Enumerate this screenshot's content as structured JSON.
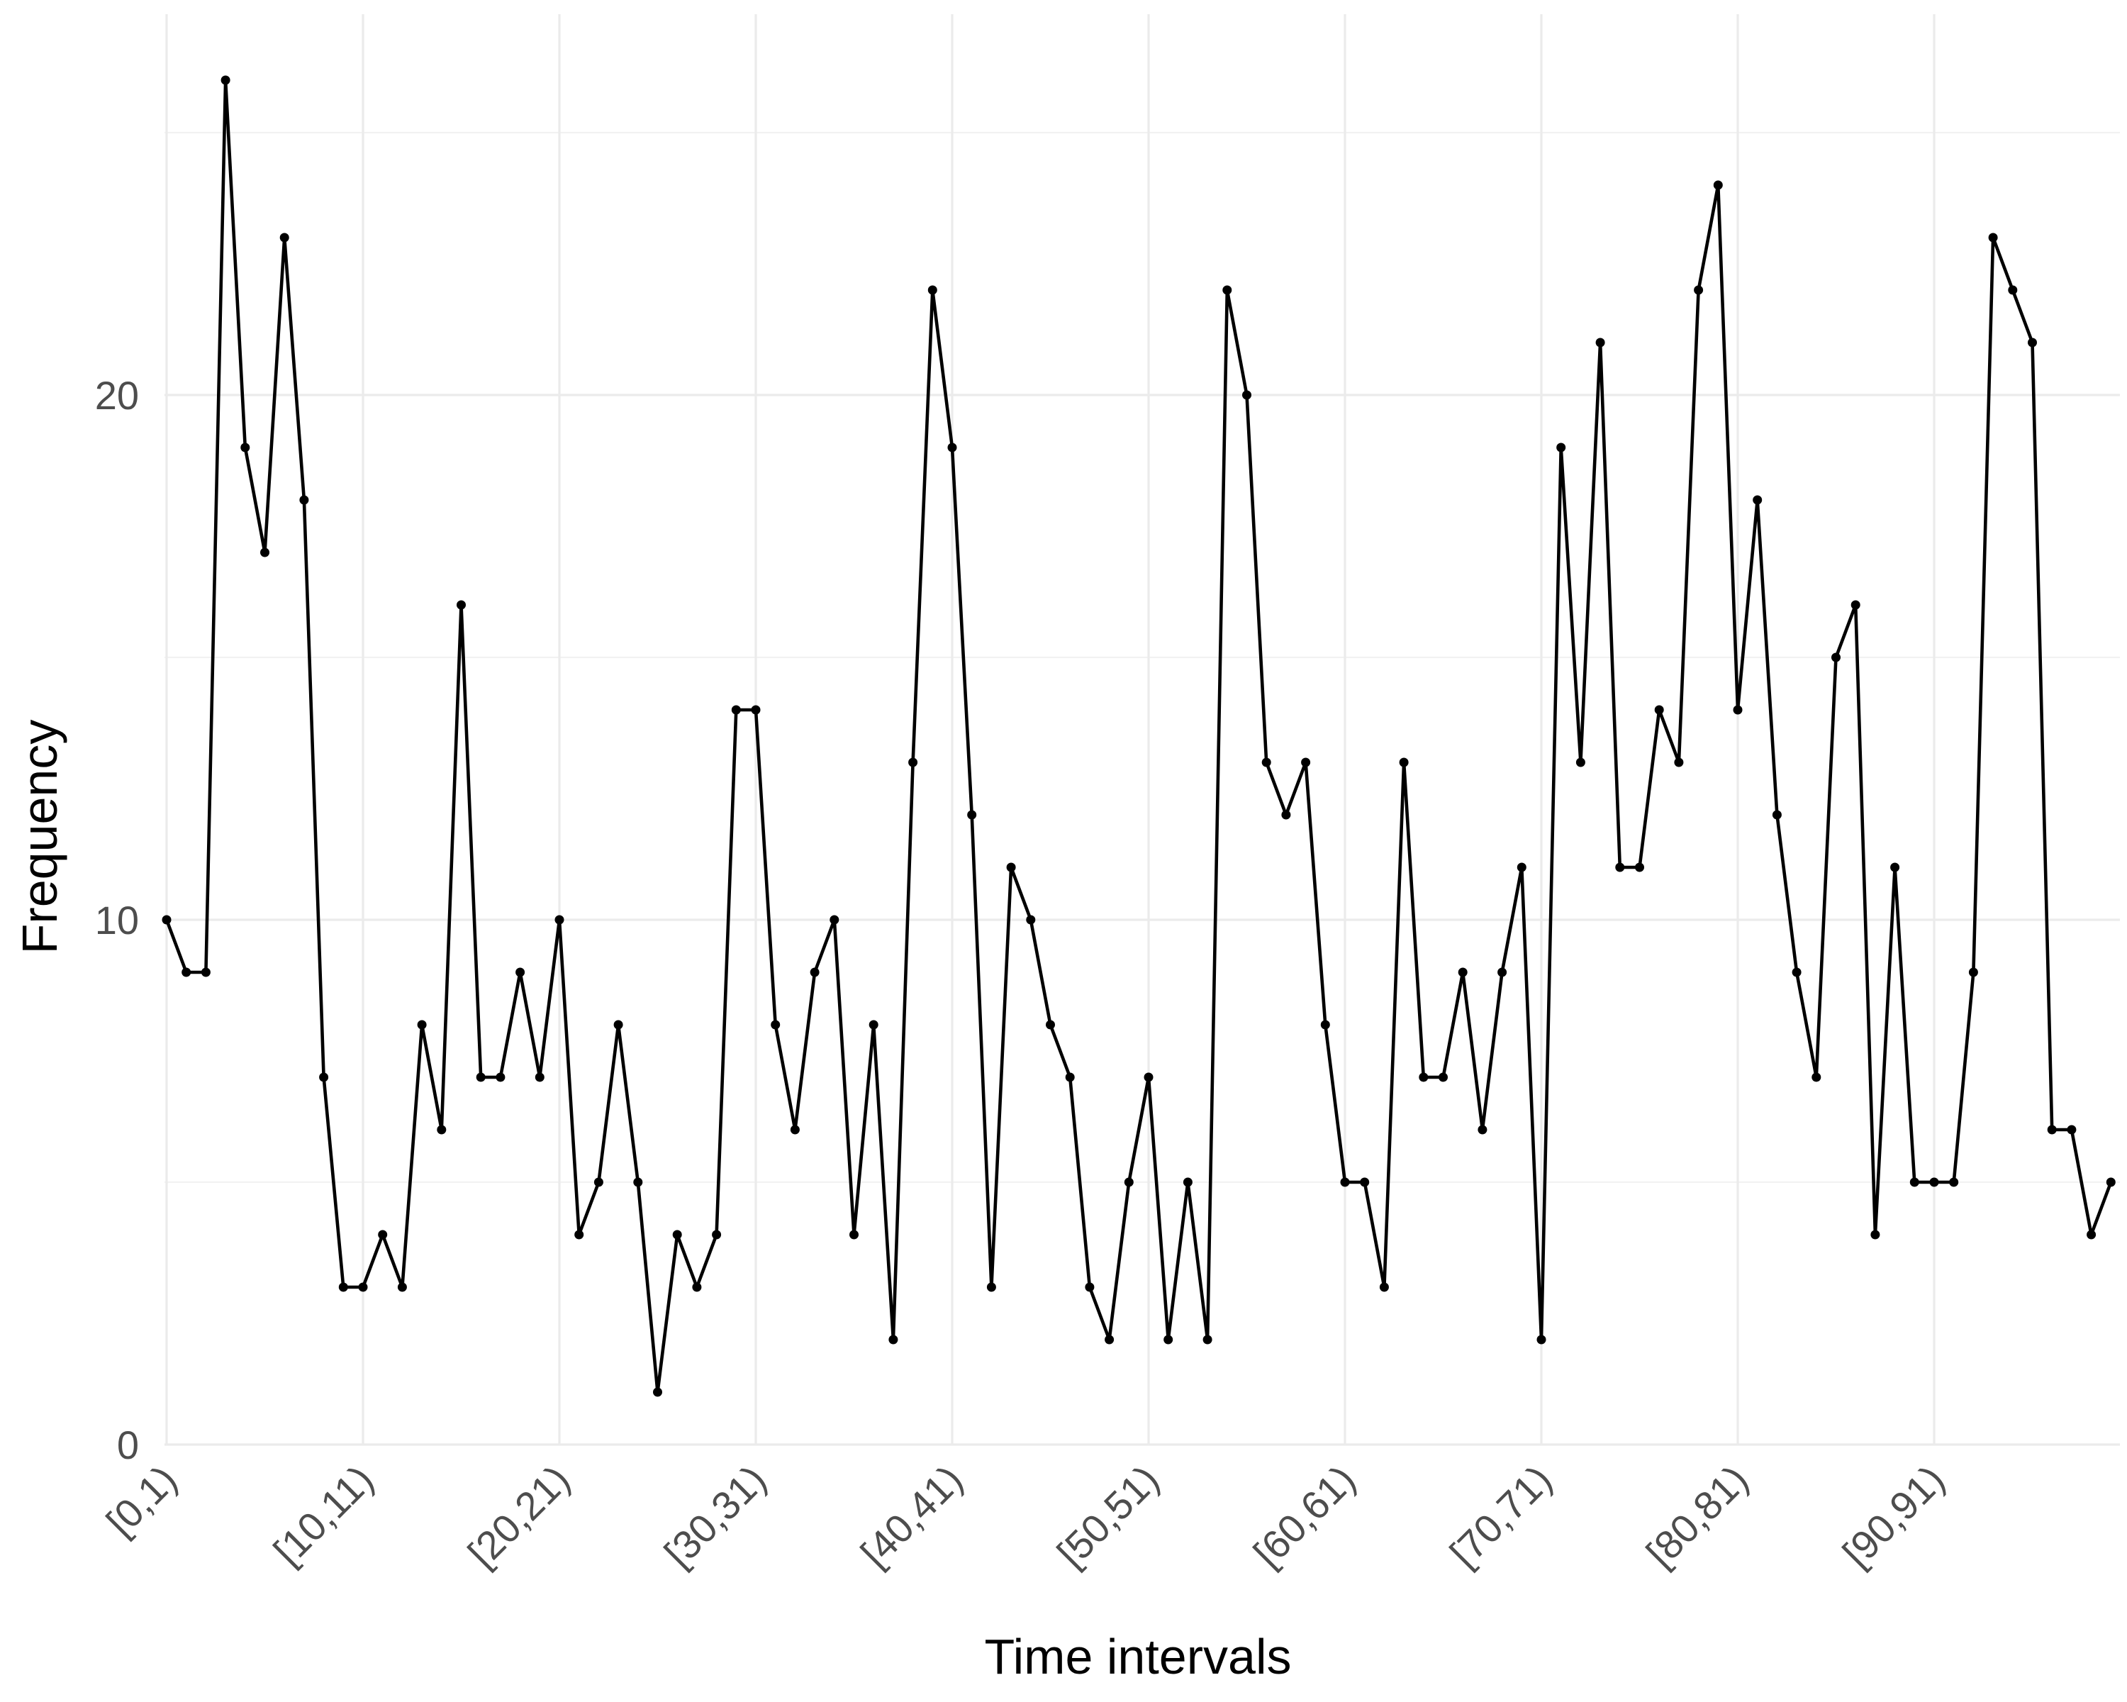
{
  "chart_data": {
    "type": "line",
    "title": "",
    "xlabel": "Time intervals",
    "ylabel": "Frequency",
    "ylim": [
      0,
      26
    ],
    "y_ticks": [
      0,
      10,
      20
    ],
    "grid": true,
    "legend": "none",
    "x_tick_labels": [
      "[0,1)",
      "[10,11)",
      "[20,21)",
      "[30,31)",
      "[40,41)",
      "[50,51)",
      "[60,61)",
      "[70,71)",
      "[80,81)",
      "[90,91)"
    ],
    "x_tick_indices": [
      0,
      10,
      20,
      30,
      40,
      50,
      60,
      70,
      80,
      90
    ],
    "categories": [
      "[0,1)",
      "[1,2)",
      "[2,3)",
      "[3,4)",
      "[4,5)",
      "[5,6)",
      "[6,7)",
      "[7,8)",
      "[8,9)",
      "[9,10)",
      "[10,11)",
      "[11,12)",
      "[12,13)",
      "[13,14)",
      "[14,15)",
      "[15,16)",
      "[16,17)",
      "[17,18)",
      "[18,19)",
      "[19,20)",
      "[20,21)",
      "[21,22)",
      "[22,23)",
      "[23,24)",
      "[24,25)",
      "[25,26)",
      "[26,27)",
      "[27,28)",
      "[28,29)",
      "[29,30)",
      "[30,31)",
      "[31,32)",
      "[32,33)",
      "[33,34)",
      "[34,35)",
      "[35,36)",
      "[36,37)",
      "[37,38)",
      "[38,39)",
      "[39,40)",
      "[40,41)",
      "[41,42)",
      "[42,43)",
      "[43,44)",
      "[44,45)",
      "[45,46)",
      "[46,47)",
      "[47,48)",
      "[48,49)",
      "[49,50)",
      "[50,51)",
      "[51,52)",
      "[52,53)",
      "[53,54)",
      "[54,55)",
      "[55,56)",
      "[56,57)",
      "[57,58)",
      "[58,59)",
      "[59,60)",
      "[60,61)",
      "[61,62)",
      "[62,63)",
      "[63,64)",
      "[64,65)",
      "[65,66)",
      "[66,67)",
      "[67,68)",
      "[68,69)",
      "[69,70)",
      "[70,71)",
      "[71,72)",
      "[72,73)",
      "[73,74)",
      "[74,75)",
      "[75,76)",
      "[76,77)",
      "[77,78)",
      "[78,79)",
      "[79,80)",
      "[80,81)",
      "[81,82)",
      "[82,83)",
      "[83,84)",
      "[84,85)",
      "[85,86)",
      "[86,87)",
      "[87,88)",
      "[88,89)",
      "[89,90)",
      "[90,91)",
      "[91,92)",
      "[92,93)",
      "[93,94)",
      "[94,95)",
      "[95,96)",
      "[96,97)",
      "[97,98)",
      "[98,99)",
      "[99,100)"
    ],
    "values": [
      10,
      9,
      9,
      26,
      19,
      17,
      23,
      18,
      7,
      3,
      3,
      4,
      3,
      8,
      6,
      16,
      7,
      7,
      9,
      7,
      10,
      4,
      5,
      8,
      5,
      1,
      4,
      3,
      4,
      14,
      14,
      8,
      6,
      9,
      10,
      4,
      8,
      2,
      13,
      22,
      19,
      12,
      3,
      11,
      10,
      8,
      7,
      3,
      2,
      5,
      7,
      2,
      5,
      2,
      22,
      20,
      13,
      12,
      13,
      8,
      5,
      5,
      3,
      13,
      7,
      7,
      9,
      6,
      9,
      11,
      2,
      19,
      13,
      21,
      11,
      11,
      14,
      13,
      22,
      24,
      14,
      18,
      12,
      9,
      7,
      15,
      16,
      4,
      11,
      5,
      5,
      5,
      9,
      23,
      22,
      21,
      6,
      6,
      4,
      5
    ]
  }
}
